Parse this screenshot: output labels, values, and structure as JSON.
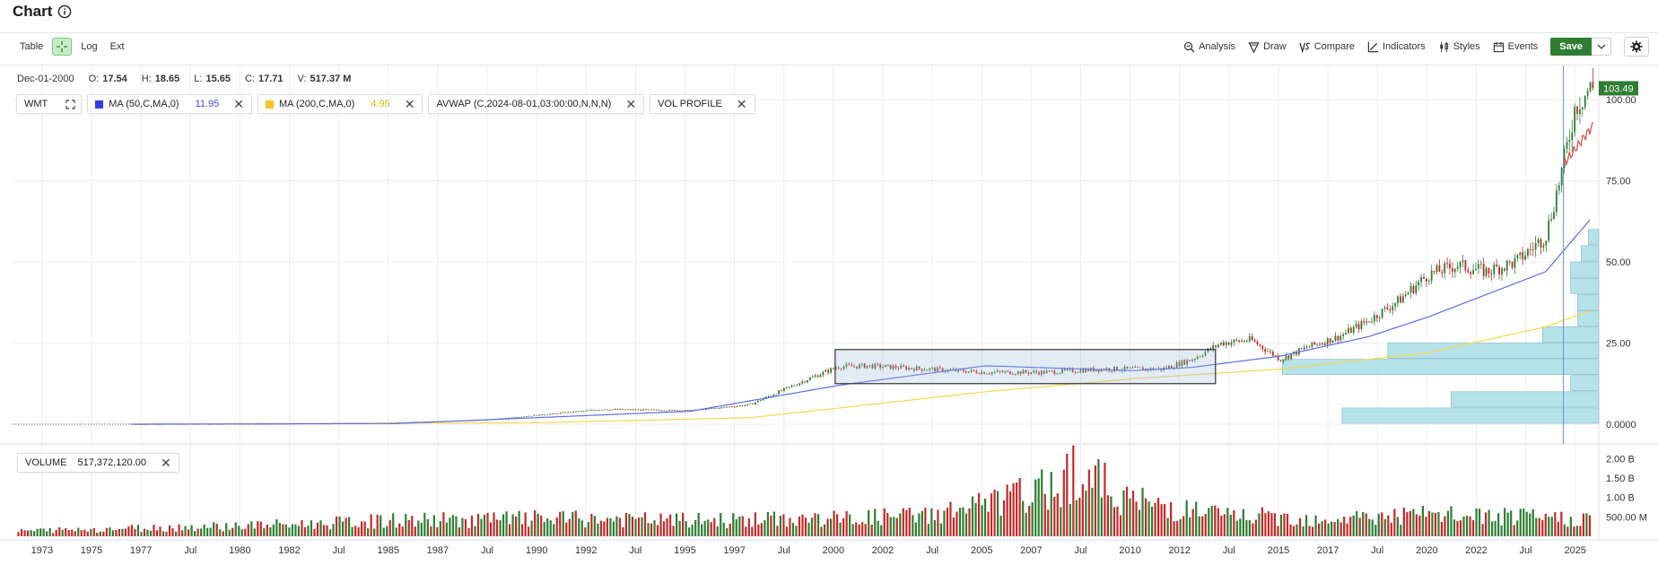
{
  "header": {
    "title": "Chart"
  },
  "toolbar": {
    "table_label": "Table",
    "log_label": "Log",
    "ext_label": "Ext",
    "analysis_label": "Analysis",
    "draw_label": "Draw",
    "compare_label": "Compare",
    "indicators_label": "Indicators",
    "styles_label": "Styles",
    "events_label": "Events",
    "save_label": "Save"
  },
  "ohlc": {
    "date": "Dec-01-2000",
    "o_label": "O:",
    "o": "17.54",
    "h_label": "H:",
    "h": "18.65",
    "l_label": "L:",
    "l": "15.65",
    "c_label": "C:",
    "c": "17.71",
    "v_label": "V:",
    "v": "517.37 M"
  },
  "legend": {
    "symbol": "WMT",
    "ma50_label": "MA (50,C,MA,0)",
    "ma50_value": "11.95",
    "ma200_label": "MA (200,C,MA,0)",
    "ma200_value": "4.95",
    "avwap_label": "AVWAP (C,2024-08-01,03:00:00,N,N,N)",
    "volprofile_label": "VOL PROFILE"
  },
  "volume_panel": {
    "label": "VOLUME",
    "value": "517,372,120.00"
  },
  "price_axis": {
    "ticks": [
      "100.00",
      "75.00",
      "50.00",
      "25.00",
      "0.0000"
    ],
    "last_price": "103.49"
  },
  "volume_axis": {
    "ticks": [
      "2.00 B",
      "1.50 B",
      "1.00 B",
      "500.00 M"
    ]
  },
  "time_axis": {
    "ticks": [
      "1973",
      "1975",
      "1977",
      "Jul",
      "1980",
      "1982",
      "Jul",
      "1985",
      "1987",
      "Jul",
      "1990",
      "1992",
      "Jul",
      "1995",
      "1997",
      "Jul",
      "2000",
      "2002",
      "Jul",
      "2005",
      "2007",
      "Jul",
      "2010",
      "2012",
      "Jul",
      "2015",
      "2017",
      "Jul",
      "2020",
      "2022",
      "Jul",
      "2025"
    ]
  },
  "colors": {
    "up": "#2e7d32",
    "down": "#c62828",
    "ma50": "#5b6cf0",
    "ma200": "#f5d94a",
    "avwap": "#d9534f",
    "vol_profile": "#a9dde6",
    "last_price_bg": "#2e7d32",
    "save_bg": "#2e7d32"
  },
  "chart_data": {
    "type": "line",
    "series": [
      {
        "name": "WMT",
        "x": [
          1972,
          1976,
          1980,
          1984,
          1988,
          1992,
          1995,
          1997,
          1999,
          2000,
          2001,
          2003,
          2005,
          2007,
          2009,
          2011,
          2012,
          2013,
          2014,
          2015,
          2016,
          2017,
          2018,
          2019,
          2020,
          2021,
          2022,
          2023,
          2024,
          2024.6,
          2025,
          2025.5
        ],
        "y": [
          0.0,
          0.02,
          0.05,
          0.3,
          1.3,
          4.6,
          4.2,
          6.0,
          14.0,
          17.7,
          18.0,
          17.0,
          16.0,
          16.0,
          17.0,
          17.0,
          20.0,
          25.0,
          26.0,
          20.0,
          24.0,
          27.0,
          32.0,
          38.0,
          46.0,
          49.0,
          47.0,
          50.0,
          58.0,
          80.0,
          98.0,
          103.49
        ]
      },
      {
        "name": "MA (50,C,MA,0)",
        "x": [
          1976,
          1985,
          1995,
          2000,
          2005,
          2010,
          2012,
          2015,
          2018,
          2020,
          2022,
          2024,
          2025.5
        ],
        "y": [
          0.0,
          0.2,
          4.0,
          11.95,
          18.0,
          16.5,
          17.5,
          21.0,
          27.0,
          33.0,
          40.0,
          47.0,
          63.0
        ]
      },
      {
        "name": "MA (200,C,MA,0)",
        "x": [
          1976,
          1990,
          1997,
          2000,
          2005,
          2010,
          2015,
          2020,
          2024,
          2025.5
        ],
        "y": [
          0.0,
          0.5,
          2.0,
          4.95,
          10.0,
          14.0,
          17.0,
          22.0,
          30.0,
          35.0
        ]
      }
    ],
    "volume": {
      "x": [
        1972,
        1982,
        1985,
        1990,
        1995,
        2000,
        2003,
        2005,
        2007,
        2008,
        2010,
        2013,
        2016,
        2020,
        2025
      ],
      "y": [
        0.15,
        0.35,
        0.45,
        0.5,
        0.45,
        0.5,
        0.6,
        0.9,
        1.3,
        1.9,
        1.0,
        0.6,
        0.5,
        0.6,
        0.5
      ]
    },
    "vol_profile_buckets": [
      {
        "price": 2.5,
        "length": 0.73
      },
      {
        "price": 7.5,
        "length": 0.42
      },
      {
        "price": 12.5,
        "length": 0.08
      },
      {
        "price": 17.5,
        "length": 0.9
      },
      {
        "price": 22.5,
        "length": 0.6
      },
      {
        "price": 27.5,
        "length": 0.16
      },
      {
        "price": 32.5,
        "length": 0.06
      },
      {
        "price": 37.5,
        "length": 0.06
      },
      {
        "price": 42.5,
        "length": 0.08
      },
      {
        "price": 47.5,
        "length": 0.08
      },
      {
        "price": 52.5,
        "length": 0.05
      },
      {
        "price": 57.5,
        "length": 0.03
      }
    ],
    "highlight_range": {
      "x_from": 1999.9,
      "x_to": 2012.8,
      "y_from": 12.5,
      "y_to": 23.0
    },
    "ylim": [
      0,
      105
    ],
    "xlim": [
      1972,
      2025.8
    ],
    "grid": true
  }
}
